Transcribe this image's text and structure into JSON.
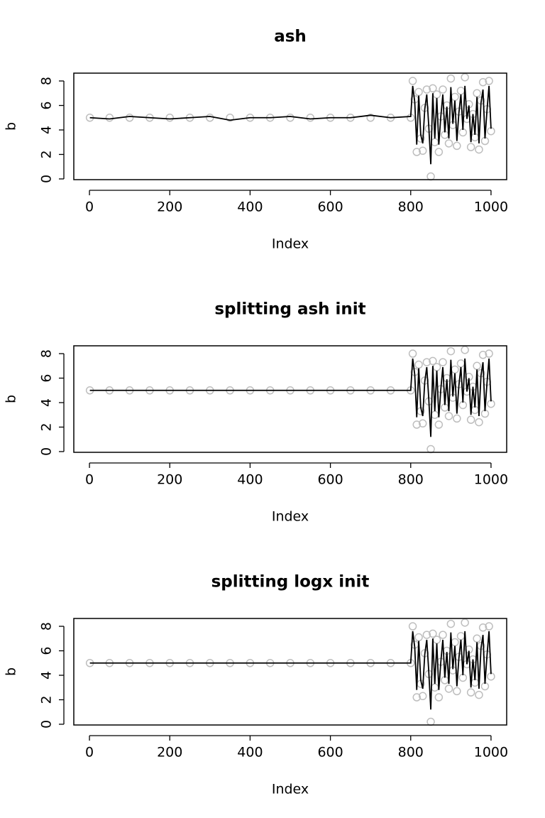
{
  "chart_data": [
    {
      "type": "line",
      "title": "ash",
      "xlabel": "Index",
      "ylabel": "b",
      "x": [
        1,
        50,
        100,
        150,
        200,
        250,
        300,
        350,
        400,
        450,
        500,
        550,
        600,
        650,
        700,
        750,
        800,
        805,
        810,
        815,
        820,
        825,
        830,
        835,
        840,
        845,
        850,
        855,
        860,
        865,
        870,
        875,
        880,
        885,
        890,
        895,
        900,
        905,
        910,
        915,
        920,
        925,
        930,
        935,
        940,
        945,
        950,
        955,
        960,
        965,
        970,
        975,
        980,
        985,
        990,
        995,
        1000
      ],
      "xlim": [
        -39,
        1039
      ],
      "ylim": [
        -0.06,
        8.64
      ],
      "xticks": [
        0,
        200,
        400,
        600,
        800,
        1000
      ],
      "yticks": [
        0,
        2,
        4,
        6,
        8
      ],
      "series": [
        {
          "mode": "points",
          "color": "#bebebe",
          "values": [
            5,
            5,
            5,
            5,
            5,
            5,
            5,
            5,
            5,
            5,
            5,
            5,
            5,
            5,
            5,
            5,
            5,
            8.0,
            6.5,
            2.2,
            7.1,
            3.3,
            2.3,
            5.8,
            7.3,
            4.1,
            0.2,
            7.4,
            3.0,
            6.9,
            2.2,
            5.1,
            7.3,
            3.6,
            6.0,
            2.9,
            8.2,
            4.4,
            6.7,
            2.7,
            5.5,
            7.2,
            3.8,
            8.3,
            4.9,
            6.1,
            2.6,
            5.3,
            3.4,
            7.0,
            2.4,
            6.4,
            7.9,
            3.1,
            5.7,
            8.0,
            3.9
          ]
        },
        {
          "mode": "line",
          "color": "#000000",
          "values": [
            5.0,
            4.9,
            5.1,
            5.0,
            4.9,
            5.0,
            5.1,
            4.8,
            5.0,
            5.0,
            5.1,
            4.9,
            5.0,
            5.0,
            5.2,
            5.0,
            5.1,
            7.6,
            6.3,
            2.8,
            6.8,
            3.6,
            2.9,
            5.7,
            6.9,
            4.3,
            1.2,
            7.0,
            3.3,
            6.6,
            2.8,
            5.1,
            6.9,
            3.8,
            5.9,
            3.3,
            7.5,
            4.5,
            6.4,
            3.1,
            5.4,
            6.9,
            4.0,
            7.6,
            4.9,
            6.0,
            3.0,
            5.3,
            3.6,
            6.7,
            2.9,
            6.2,
            7.3,
            3.3,
            5.6,
            7.6,
            4.1
          ]
        }
      ]
    },
    {
      "type": "line",
      "title": "splitting ash init",
      "xlabel": "Index",
      "ylabel": "b",
      "x": [
        1,
        50,
        100,
        150,
        200,
        250,
        300,
        350,
        400,
        450,
        500,
        550,
        600,
        650,
        700,
        750,
        800,
        805,
        810,
        815,
        820,
        825,
        830,
        835,
        840,
        845,
        850,
        855,
        860,
        865,
        870,
        875,
        880,
        885,
        890,
        895,
        900,
        905,
        910,
        915,
        920,
        925,
        930,
        935,
        940,
        945,
        950,
        955,
        960,
        965,
        970,
        975,
        980,
        985,
        990,
        995,
        1000
      ],
      "xlim": [
        -39,
        1039
      ],
      "ylim": [
        -0.06,
        8.64
      ],
      "xticks": [
        0,
        200,
        400,
        600,
        800,
        1000
      ],
      "yticks": [
        0,
        2,
        4,
        6,
        8
      ],
      "series": [
        {
          "mode": "points",
          "color": "#bebebe",
          "values": [
            5,
            5,
            5,
            5,
            5,
            5,
            5,
            5,
            5,
            5,
            5,
            5,
            5,
            5,
            5,
            5,
            5,
            8.0,
            6.5,
            2.2,
            7.1,
            3.3,
            2.3,
            5.8,
            7.3,
            4.1,
            0.2,
            7.4,
            3.0,
            6.9,
            2.2,
            5.1,
            7.3,
            3.6,
            6.0,
            2.9,
            8.2,
            4.4,
            6.7,
            2.7,
            5.5,
            7.2,
            3.8,
            8.3,
            4.9,
            6.1,
            2.6,
            5.3,
            3.4,
            7.0,
            2.4,
            6.4,
            7.9,
            3.1,
            5.7,
            8.0,
            3.9
          ]
        },
        {
          "mode": "line",
          "color": "#000000",
          "values": [
            5,
            5,
            5,
            5,
            5,
            5,
            5,
            5,
            5,
            5,
            5,
            5,
            5,
            5,
            5,
            5,
            5,
            7.6,
            6.3,
            2.8,
            6.8,
            3.6,
            2.9,
            5.7,
            6.9,
            4.3,
            1.2,
            7.0,
            3.3,
            6.6,
            2.8,
            5.1,
            6.9,
            3.8,
            5.9,
            3.3,
            7.5,
            4.5,
            6.4,
            3.1,
            5.4,
            6.9,
            4.0,
            7.6,
            4.9,
            6.0,
            3.0,
            5.3,
            3.6,
            6.7,
            2.9,
            6.2,
            7.3,
            3.3,
            5.6,
            7.6,
            4.1
          ]
        }
      ]
    },
    {
      "type": "line",
      "title": "splitting logx init",
      "xlabel": "Index",
      "ylabel": "b",
      "x": [
        1,
        50,
        100,
        150,
        200,
        250,
        300,
        350,
        400,
        450,
        500,
        550,
        600,
        650,
        700,
        750,
        800,
        805,
        810,
        815,
        820,
        825,
        830,
        835,
        840,
        845,
        850,
        855,
        860,
        865,
        870,
        875,
        880,
        885,
        890,
        895,
        900,
        905,
        910,
        915,
        920,
        925,
        930,
        935,
        940,
        945,
        950,
        955,
        960,
        965,
        970,
        975,
        980,
        985,
        990,
        995,
        1000
      ],
      "xlim": [
        -39,
        1039
      ],
      "ylim": [
        -0.06,
        8.64
      ],
      "xticks": [
        0,
        200,
        400,
        600,
        800,
        1000
      ],
      "yticks": [
        0,
        2,
        4,
        6,
        8
      ],
      "series": [
        {
          "mode": "points",
          "color": "#bebebe",
          "values": [
            5,
            5,
            5,
            5,
            5,
            5,
            5,
            5,
            5,
            5,
            5,
            5,
            5,
            5,
            5,
            5,
            5,
            8.0,
            6.5,
            2.2,
            7.1,
            3.3,
            2.3,
            5.8,
            7.3,
            4.1,
            0.2,
            7.4,
            3.0,
            6.9,
            2.2,
            5.1,
            7.3,
            3.6,
            6.0,
            2.9,
            8.2,
            4.4,
            6.7,
            2.7,
            5.5,
            7.2,
            3.8,
            8.3,
            4.9,
            6.1,
            2.6,
            5.3,
            3.4,
            7.0,
            2.4,
            6.4,
            7.9,
            3.1,
            5.7,
            8.0,
            3.9
          ]
        },
        {
          "mode": "line",
          "color": "#000000",
          "values": [
            5,
            5,
            5,
            5,
            5,
            5,
            5,
            5,
            5,
            5,
            5,
            5,
            5,
            5,
            5,
            5,
            5,
            7.6,
            6.3,
            2.8,
            6.8,
            3.6,
            2.9,
            5.7,
            6.9,
            4.3,
            1.2,
            7.0,
            3.3,
            6.6,
            2.8,
            5.1,
            6.9,
            3.8,
            5.9,
            3.3,
            7.5,
            4.5,
            6.4,
            3.1,
            5.4,
            6.9,
            4.0,
            7.6,
            4.9,
            6.0,
            3.0,
            5.3,
            3.6,
            6.7,
            2.9,
            6.2,
            7.3,
            3.3,
            5.6,
            7.6,
            4.1
          ]
        }
      ]
    }
  ]
}
